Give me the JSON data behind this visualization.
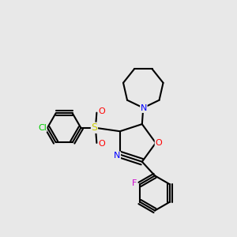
{
  "bg_color": "#e8e8e8",
  "atom_colors": {
    "N": "#0000ff",
    "O": "#ff0000",
    "S": "#cccc00",
    "Cl": "#00cc00",
    "F": "#cc00cc",
    "C": "#000000"
  },
  "bond_width": 1.5
}
